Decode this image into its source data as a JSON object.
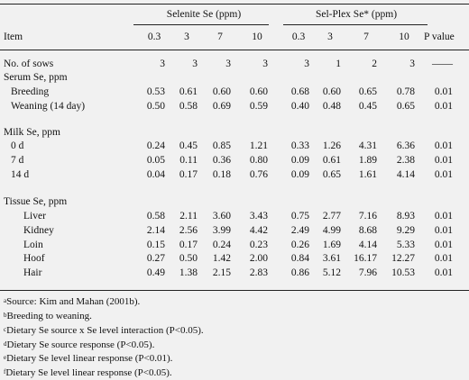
{
  "header": {
    "group1": "Selenite Se (ppm)",
    "group2": "Sel-Plex Se* (ppm)",
    "item": "Item",
    "levels": [
      "0.3",
      "3",
      "7",
      "10",
      "0.3",
      "3",
      "7",
      "10"
    ],
    "pvalue": "P value"
  },
  "rows": [
    {
      "label": "No. of sows",
      "vals": [
        "3",
        "3",
        "3",
        "3",
        "3",
        "1",
        "2",
        "3"
      ],
      "p": "——"
    },
    {
      "label": "Serum Se, ppm",
      "section": true
    },
    {
      "label": "Breeding",
      "indent": 1,
      "vals": [
        "0.53",
        "0.61",
        "0.60",
        "0.60",
        "0.68",
        "0.60",
        "0.65",
        "0.78"
      ],
      "p": "0.01"
    },
    {
      "label": "Weaning (14 day)",
      "indent": 1,
      "vals": [
        "0.50",
        "0.58",
        "0.69",
        "0.59",
        "0.40",
        "0.48",
        "0.45",
        "0.65"
      ],
      "p": "0.01"
    },
    {
      "label": "Milk Se, ppm",
      "section": true
    },
    {
      "label": "0 d",
      "indent": 1,
      "vals": [
        "0.24",
        "0.45",
        "0.85",
        "1.21",
        "0.33",
        "1.26",
        "4.31",
        "6.36"
      ],
      "p": "0.01"
    },
    {
      "label": "7 d",
      "indent": 1,
      "vals": [
        "0.05",
        "0.11",
        "0.36",
        "0.80",
        "0.09",
        "0.61",
        "1.89",
        "2.38"
      ],
      "p": "0.01"
    },
    {
      "label": "14 d",
      "indent": 1,
      "vals": [
        "0.04",
        "0.17",
        "0.18",
        "0.76",
        "0.09",
        "0.65",
        "1.61",
        "4.14"
      ],
      "p": "0.01"
    },
    {
      "label": "Tissue Se, ppm",
      "section": true
    },
    {
      "label": "Liver",
      "indent": 2,
      "vals": [
        "0.58",
        "2.11",
        "3.60",
        "3.43",
        "0.75",
        "2.77",
        "7.16",
        "8.93"
      ],
      "p": "0.01"
    },
    {
      "label": "Kidney",
      "indent": 2,
      "vals": [
        "2.14",
        "2.56",
        "3.99",
        "4.42",
        "2.49",
        "4.99",
        "8.68",
        "9.29"
      ],
      "p": "0.01"
    },
    {
      "label": "Loin",
      "indent": 2,
      "vals": [
        "0.15",
        "0.17",
        "0.24",
        "0.23",
        "0.26",
        "1.69",
        "4.14",
        "5.33"
      ],
      "p": "0.01"
    },
    {
      "label": "Hoof",
      "indent": 2,
      "vals": [
        "0.27",
        "0.50",
        "1.42",
        "2.00",
        "0.84",
        "3.61",
        "16.17",
        "12.27"
      ],
      "p": "0.01"
    },
    {
      "label": "Hair",
      "indent": 2,
      "vals": [
        "0.49",
        "1.38",
        "2.15",
        "2.83",
        "0.86",
        "5.12",
        "7.96",
        "10.53"
      ],
      "p": "0.01"
    }
  ],
  "footnotes": [
    {
      "mark": "a",
      "text": "Source: Kim and Mahan (2001b)."
    },
    {
      "mark": "b",
      "text": "Breeding to weaning."
    },
    {
      "mark": "c",
      "text": "Dietary Se source x Se level interaction (P<0.05)."
    },
    {
      "mark": "d",
      "text": "Dietary Se source response (P<0.05)."
    },
    {
      "mark": "e",
      "text": "Dietary Se level linear response (P<0.01)."
    },
    {
      "mark": "f",
      "text": "Dietary Se level linear response (P<0.05)."
    }
  ]
}
